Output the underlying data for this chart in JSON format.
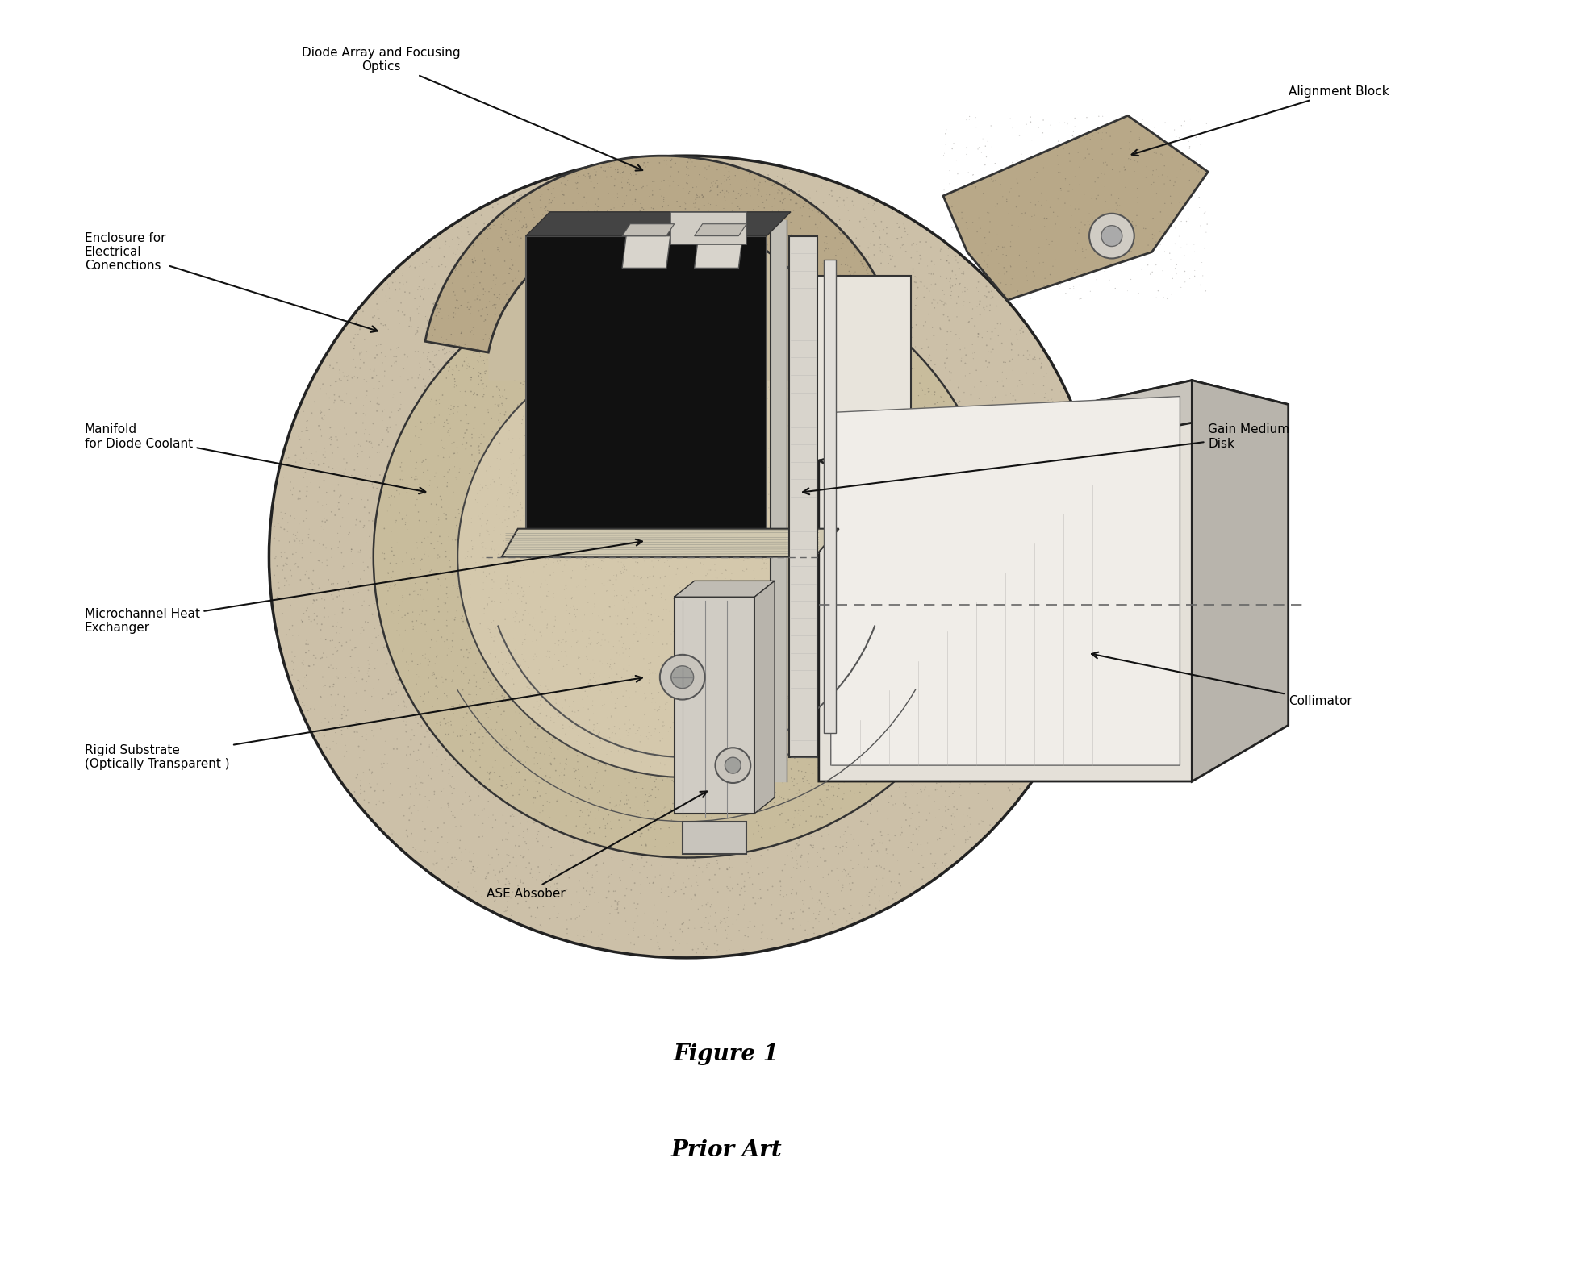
{
  "title": "Figure 1",
  "subtitle": "Prior Art",
  "labels": {
    "diode_array": "Diode Array and Focusing\nOptics",
    "enclosure": "Enclosure for\nElectrical\nConenctions",
    "manifold": "Manifold\nfor Diode Coolant",
    "microchannel": "Microchannel Heat\nExchanger",
    "rigid_substrate": "Rigid Substrate\n(Optically Transparent )",
    "ase_absorber": "ASE Absober",
    "alignment_block": "Alignment Block",
    "gain_medium": "Gain Medium\nDisk",
    "collimator": "Collimator"
  },
  "bg_color": "#ffffff",
  "stone_light": "#ccc0a8",
  "stone_mid": "#b8a888",
  "stone_dark": "#a09070",
  "panel_black": "#111111",
  "slab_color": "#d8d4cc",
  "box_face": "#e0ddd8",
  "box_top": "#c8c4bc",
  "box_side": "#b8b4ac"
}
